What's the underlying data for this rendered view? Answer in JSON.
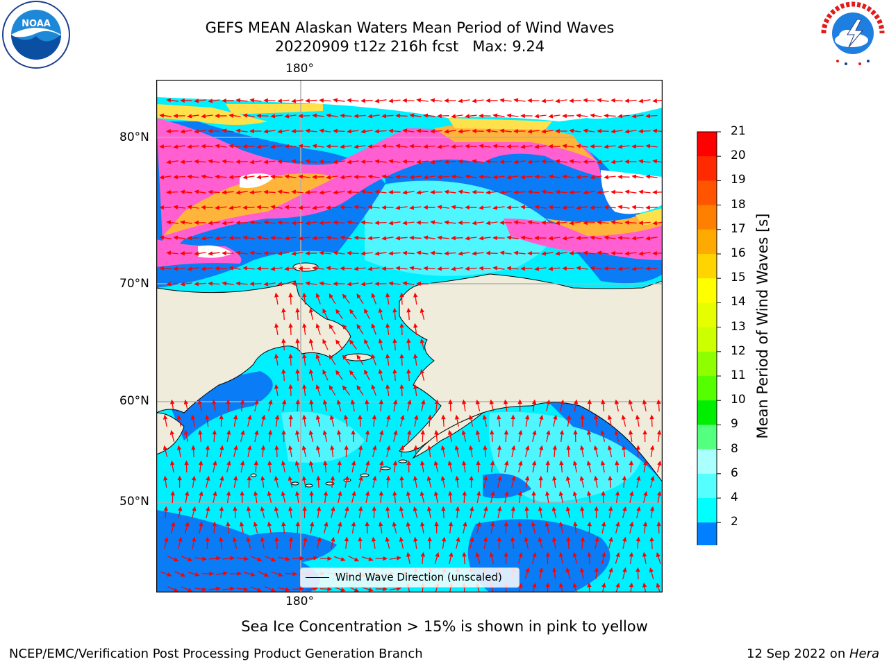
{
  "title": {
    "line1": "GEFS MEAN Alaskan Waters Mean Period of Wind Waves",
    "line2": "20220909 t12z 216h fcst   Max: 9.24"
  },
  "logos": {
    "left": {
      "name": "noaa-logo",
      "text": "NOAA"
    },
    "right": {
      "name": "national-weather-service-logo",
      "text": "NATIONAL WEATHER SERVICE"
    }
  },
  "map": {
    "lon_label_top": "180°",
    "lon_label_bottom": "180°",
    "lat_labels": [
      "80°N",
      "70°N",
      "60°N",
      "50°N"
    ],
    "legend_label": "Wind Wave Direction (unscaled)",
    "colors": {
      "land": "#efecdb",
      "ocean_low": "#0a7cf5",
      "ocean_mid": "#00f0ff",
      "ocean_light": "#4ff5ff",
      "ice_pink": "#ff5fd0",
      "ice_orange": "#ffb43c",
      "ice_yellow": "#ffe14c",
      "arrow": "#ff0000",
      "grid": "#b0b0b0"
    }
  },
  "colorbar": {
    "label": "Mean Period of Wind Waves [s]",
    "ticks": [
      "21",
      "20",
      "19",
      "18",
      "17",
      "16",
      "15",
      "14",
      "13",
      "12",
      "11",
      "10",
      "9",
      "8",
      "6",
      "4",
      "2"
    ],
    "colors": [
      "#ff0000",
      "#ff2a00",
      "#ff5500",
      "#ff7f00",
      "#ffaa00",
      "#ffd400",
      "#ffff00",
      "#e6ff00",
      "#ccff00",
      "#8fff00",
      "#55ff00",
      "#00ee00",
      "#55ff80",
      "#aaffff",
      "#55ffff",
      "#00ffff",
      "#0080ff"
    ],
    "under_color": "#0000ff"
  },
  "footer": {
    "note": "Sea Ice Concentration > 15% is shown in pink to yellow",
    "left": "NCEP/EMC/Verification Post Processing Product Generation Branch",
    "right_prefix": "12 Sep 2022 on ",
    "right_host": "Hera"
  }
}
